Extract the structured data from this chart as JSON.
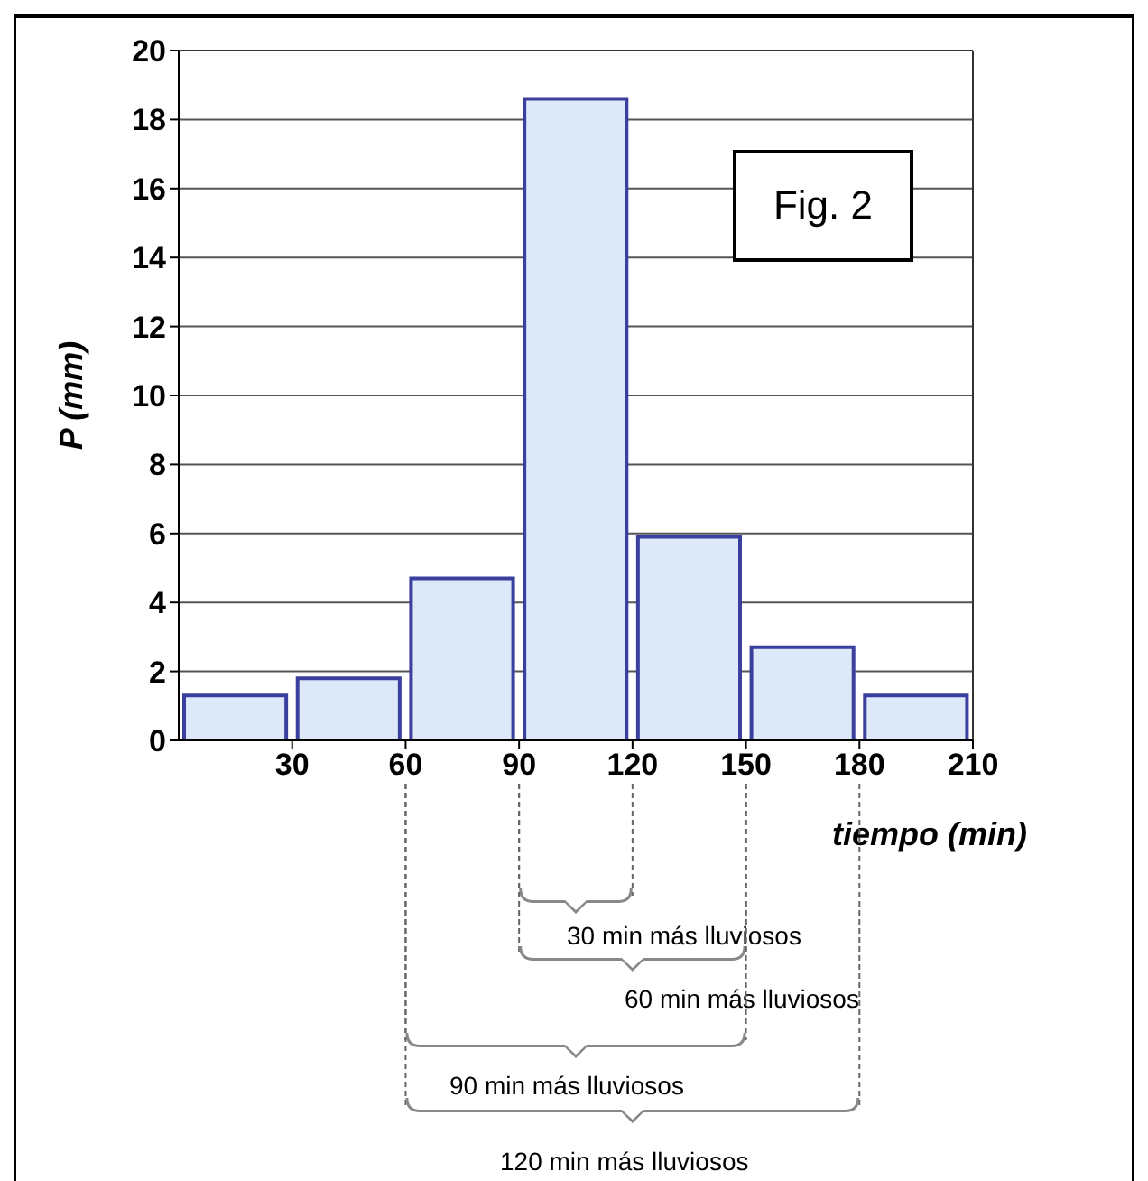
{
  "chart_data": {
    "type": "histogram",
    "xlabel": "tiempo (min)",
    "ylabel": "P (mm)",
    "bins": [
      0,
      30,
      60,
      90,
      120,
      150,
      180,
      210
    ],
    "values": [
      1.3,
      1.8,
      4.7,
      18.6,
      5.9,
      2.7,
      1.3
    ],
    "color": "#dde9f8",
    "xlim": [
      0,
      210
    ],
    "xticks": [
      30,
      60,
      90,
      120,
      150,
      180,
      210
    ],
    "ylim": [
      0,
      20
    ],
    "yticks": [
      0,
      2,
      4,
      6,
      8,
      10,
      12,
      14,
      16,
      18,
      20
    ],
    "grid": "y",
    "annotations": [
      "Fig. 2",
      "30 min más lluviosos",
      "60 min más lluviosos",
      "90 min más lluviosos",
      "120 min más lluviosos"
    ]
  }
}
